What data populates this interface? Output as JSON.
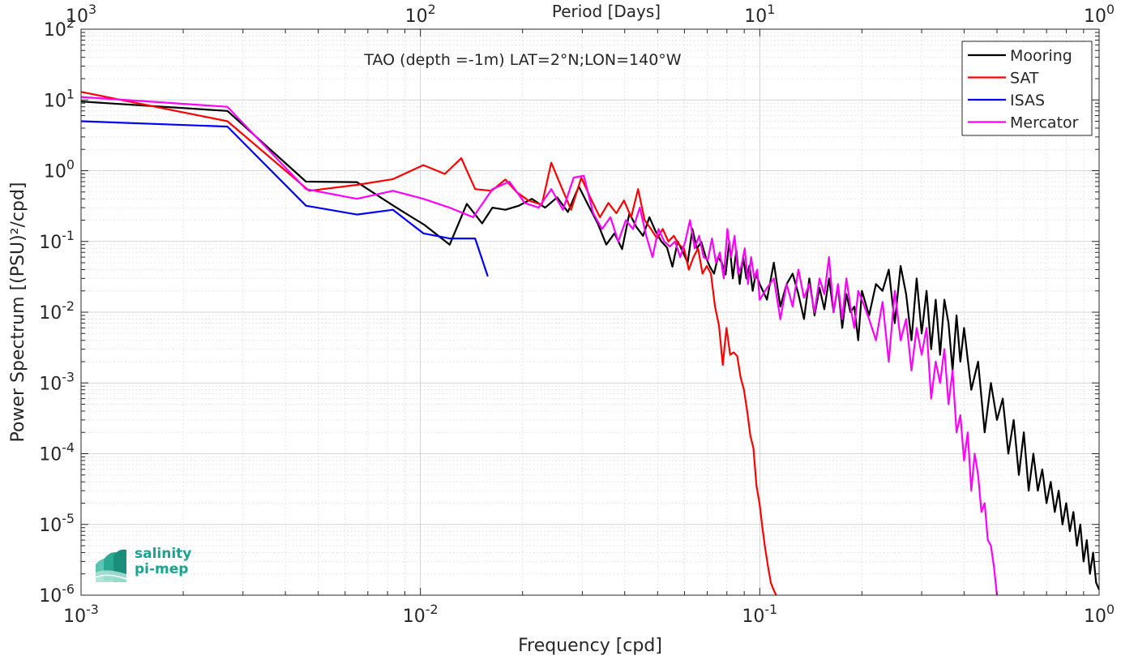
{
  "chart_data": {
    "type": "line",
    "title": "TAO (depth =-1m) LAT=2°N;LON=140°W",
    "xlabel": "Frequency [cpd]",
    "ylabel": "Power Spectrum [(PSU)²/cpd]",
    "top_xlabel": "Period [Days]",
    "xscale": "log",
    "yscale": "log",
    "xlim": [
      0.001,
      1
    ],
    "ylim": [
      1e-06,
      100
    ],
    "grid": true,
    "legend_position": "top-right",
    "x_ticks": [
      {
        "base": "10",
        "exp": "-3",
        "value": 0.001
      },
      {
        "base": "10",
        "exp": "-2",
        "value": 0.01
      },
      {
        "base": "10",
        "exp": "-1",
        "value": 0.1
      },
      {
        "base": "10",
        "exp": "0",
        "value": 1
      }
    ],
    "top_ticks": [
      {
        "base": "10",
        "exp": "3",
        "value": 0.001
      },
      {
        "base": "10",
        "exp": "2",
        "value": 0.01
      },
      {
        "base": "10",
        "exp": "1",
        "value": 0.1
      },
      {
        "base": "10",
        "exp": "0",
        "value": 1
      }
    ],
    "y_ticks": [
      {
        "base": "10",
        "exp": "2",
        "value": 100
      },
      {
        "base": "10",
        "exp": "1",
        "value": 10
      },
      {
        "base": "10",
        "exp": "0",
        "value": 1
      },
      {
        "base": "10",
        "exp": "-1",
        "value": 0.1
      },
      {
        "base": "10",
        "exp": "-2",
        "value": 0.01
      },
      {
        "base": "10",
        "exp": "-3",
        "value": 0.001
      },
      {
        "base": "10",
        "exp": "-4",
        "value": 0.0001
      },
      {
        "base": "10",
        "exp": "-5",
        "value": 1e-05
      },
      {
        "base": "10",
        "exp": "-6",
        "value": 1e-06
      }
    ],
    "series": [
      {
        "name": "Mooring",
        "color": "#000000",
        "x": [
          0.001,
          0.0027,
          0.0046,
          0.0065,
          0.0085,
          0.0103,
          0.0122,
          0.0137,
          0.0152,
          0.0163,
          0.0178,
          0.0195,
          0.0213,
          0.0233,
          0.0253,
          0.0272,
          0.0293,
          0.0313,
          0.0333,
          0.0353,
          0.0373,
          0.0393,
          0.0413,
          0.0433,
          0.0453,
          0.0473,
          0.0493,
          0.0513,
          0.0533,
          0.0553,
          0.0573,
          0.0593,
          0.0613,
          0.0633,
          0.0653,
          0.0673,
          0.0693,
          0.0713,
          0.0733,
          0.0753,
          0.0773,
          0.0793,
          0.0813,
          0.0833,
          0.0853,
          0.0873,
          0.0893,
          0.0913,
          0.0933,
          0.0953,
          0.0973,
          0.1,
          0.105,
          0.11,
          0.115,
          0.12,
          0.125,
          0.13,
          0.135,
          0.14,
          0.145,
          0.15,
          0.155,
          0.16,
          0.165,
          0.17,
          0.175,
          0.18,
          0.185,
          0.19,
          0.195,
          0.2,
          0.21,
          0.22,
          0.23,
          0.24,
          0.25,
          0.26,
          0.27,
          0.28,
          0.29,
          0.3,
          0.31,
          0.32,
          0.33,
          0.34,
          0.35,
          0.36,
          0.37,
          0.38,
          0.39,
          0.4,
          0.42,
          0.44,
          0.46,
          0.48,
          0.5,
          0.52,
          0.54,
          0.56,
          0.58,
          0.6,
          0.62,
          0.64,
          0.66,
          0.68,
          0.7,
          0.72,
          0.74,
          0.76,
          0.78,
          0.8,
          0.82,
          0.84,
          0.86,
          0.88,
          0.9,
          0.92,
          0.94,
          0.96,
          0.98,
          1.0
        ],
        "y": [
          9.5,
          7,
          0.7,
          0.69,
          0.3,
          0.17,
          0.09,
          0.34,
          0.18,
          0.3,
          0.28,
          0.32,
          0.4,
          0.3,
          0.42,
          0.26,
          0.6,
          0.32,
          0.18,
          0.09,
          0.13,
          0.078,
          0.25,
          0.16,
          0.12,
          0.22,
          0.14,
          0.1,
          0.082,
          0.044,
          0.1,
          0.072,
          0.05,
          0.15,
          0.08,
          0.098,
          0.06,
          0.044,
          0.035,
          0.06,
          0.05,
          0.034,
          0.1,
          0.03,
          0.075,
          0.025,
          0.06,
          0.03,
          0.046,
          0.02,
          0.035,
          0.025,
          0.015,
          0.05,
          0.012,
          0.025,
          0.035,
          0.018,
          0.008,
          0.03,
          0.009,
          0.022,
          0.011,
          0.03,
          0.01,
          0.024,
          0.006,
          0.018,
          0.01,
          0.012,
          0.004,
          0.02,
          0.009,
          0.025,
          0.02,
          0.04,
          0.007,
          0.045,
          0.018,
          0.004,
          0.03,
          0.005,
          0.02,
          0.003,
          0.015,
          0.0025,
          0.015,
          0.007,
          0.0015,
          0.009,
          0.002,
          0.006,
          0.0008,
          0.002,
          0.0002,
          0.001,
          0.0003,
          0.0006,
          0.0001,
          0.0003,
          5e-05,
          0.0002,
          3e-05,
          0.0001,
          3e-05,
          6e-05,
          2e-05,
          4e-05,
          1.5e-05,
          3e-05,
          1e-05,
          2e-05,
          8e-06,
          1.5e-05,
          5e-06,
          1e-05,
          3e-06,
          6e-06,
          2e-06,
          4e-06,
          1.5e-06,
          1.2e-06
        ]
      },
      {
        "name": "SAT",
        "color": "#ff0000",
        "x": [
          0.001,
          0.0027,
          0.0047,
          0.0065,
          0.0083,
          0.0102,
          0.0118,
          0.0132,
          0.0145,
          0.0162,
          0.0178,
          0.0192,
          0.0208,
          0.0228,
          0.0243,
          0.0258,
          0.0278,
          0.0298,
          0.0318,
          0.0338,
          0.0358,
          0.0378,
          0.0398,
          0.0418,
          0.0438,
          0.0458,
          0.0478,
          0.0498,
          0.0518,
          0.0538,
          0.0558,
          0.0578,
          0.0598,
          0.0618,
          0.0638,
          0.0658,
          0.0678,
          0.0698,
          0.0718,
          0.0738,
          0.0758,
          0.0778,
          0.0798,
          0.0818,
          0.0838,
          0.0858,
          0.0878,
          0.0898,
          0.0918,
          0.0938,
          0.0958,
          0.0978,
          0.0998,
          0.1018,
          0.1038,
          0.1058,
          0.1078,
          0.1098,
          0.1118
        ],
        "y": [
          13,
          5,
          0.52,
          0.63,
          0.76,
          1.2,
          0.9,
          1.5,
          0.55,
          0.52,
          0.75,
          0.5,
          0.38,
          0.33,
          1.3,
          0.65,
          0.28,
          0.8,
          0.4,
          0.22,
          0.35,
          0.25,
          0.38,
          0.22,
          0.55,
          0.2,
          0.15,
          0.11,
          0.15,
          0.1,
          0.12,
          0.09,
          0.08,
          0.04,
          0.06,
          0.08,
          0.035,
          0.045,
          0.035,
          0.012,
          0.0065,
          0.0018,
          0.006,
          0.0025,
          0.0027,
          0.0024,
          0.0012,
          0.0008,
          0.0004,
          0.00018,
          0.00012,
          3.5e-05,
          2e-05,
          9e-06,
          4.5e-06,
          2.5e-06,
          1.5e-06,
          1.2e-06,
          1e-06
        ]
      },
      {
        "name": "ISAS",
        "color": "#0000ff",
        "x": [
          0.001,
          0.0027,
          0.0046,
          0.0065,
          0.0083,
          0.0102,
          0.0122,
          0.0145,
          0.0158
        ],
        "y": [
          5,
          4.2,
          0.32,
          0.24,
          0.28,
          0.13,
          0.11,
          0.11,
          0.032
        ]
      },
      {
        "name": "Mercator",
        "color": "#ff00ff",
        "x": [
          0.001,
          0.0027,
          0.0046,
          0.0065,
          0.0083,
          0.0102,
          0.0122,
          0.0143,
          0.0163,
          0.0183,
          0.0203,
          0.0223,
          0.0243,
          0.0263,
          0.0283,
          0.0303,
          0.0323,
          0.0343,
          0.0363,
          0.0383,
          0.0403,
          0.0423,
          0.0443,
          0.0463,
          0.0483,
          0.0503,
          0.0523,
          0.0543,
          0.0563,
          0.0583,
          0.0603,
          0.0623,
          0.0643,
          0.0663,
          0.0683,
          0.0703,
          0.0723,
          0.0743,
          0.0763,
          0.0783,
          0.0803,
          0.0823,
          0.0843,
          0.0863,
          0.0883,
          0.0903,
          0.0923,
          0.0943,
          0.0963,
          0.0983,
          0.1,
          0.105,
          0.11,
          0.115,
          0.12,
          0.125,
          0.13,
          0.135,
          0.14,
          0.145,
          0.15,
          0.155,
          0.16,
          0.165,
          0.17,
          0.175,
          0.18,
          0.185,
          0.19,
          0.195,
          0.2,
          0.21,
          0.22,
          0.23,
          0.24,
          0.25,
          0.26,
          0.27,
          0.28,
          0.29,
          0.3,
          0.31,
          0.32,
          0.33,
          0.34,
          0.35,
          0.36,
          0.37,
          0.38,
          0.39,
          0.4,
          0.41,
          0.42,
          0.43,
          0.44,
          0.45,
          0.46,
          0.47,
          0.48,
          0.49,
          0.5
        ],
        "y": [
          11,
          8,
          0.55,
          0.4,
          0.52,
          0.4,
          0.3,
          0.22,
          0.55,
          0.7,
          0.35,
          0.3,
          0.55,
          0.28,
          0.8,
          0.85,
          0.25,
          0.15,
          0.22,
          0.1,
          0.2,
          0.15,
          0.3,
          0.12,
          0.06,
          0.15,
          0.1,
          0.085,
          0.1,
          0.06,
          0.1,
          0.2,
          0.08,
          0.12,
          0.06,
          0.055,
          0.11,
          0.05,
          0.07,
          0.03,
          0.15,
          0.06,
          0.12,
          0.035,
          0.045,
          0.08,
          0.025,
          0.06,
          0.03,
          0.04,
          0.015,
          0.022,
          0.03,
          0.008,
          0.025,
          0.012,
          0.04,
          0.016,
          0.025,
          0.01,
          0.03,
          0.018,
          0.06,
          0.01,
          0.025,
          0.008,
          0.03,
          0.012,
          0.006,
          0.02,
          0.015,
          0.008,
          0.004,
          0.014,
          0.002,
          0.02,
          0.004,
          0.008,
          0.0015,
          0.006,
          0.0025,
          0.006,
          0.0006,
          0.002,
          0.001,
          0.003,
          0.0005,
          0.0015,
          0.0002,
          0.00035,
          8e-05,
          0.0002,
          3e-05,
          0.0001,
          5e-05,
          1.5e-05,
          2e-05,
          6e-06,
          5e-06,
          2.5e-06,
          1e-06
        ]
      }
    ]
  },
  "logo": {
    "line1": "salinity",
    "line2": "pi-mep",
    "color": "#1aa390"
  }
}
